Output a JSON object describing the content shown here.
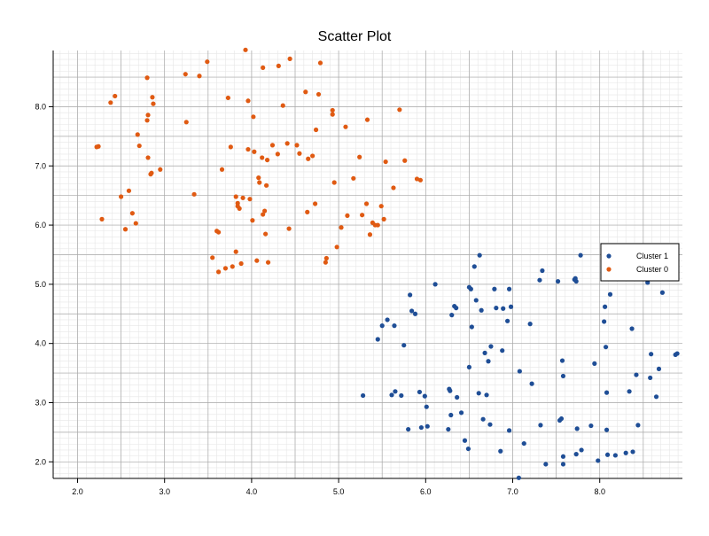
{
  "chart_data": {
    "type": "scatter",
    "title": "Scatter Plot",
    "xlabel": "",
    "ylabel": "",
    "xlim": [
      1.72,
      8.95
    ],
    "ylim": [
      1.72,
      8.95
    ],
    "x_ticks": [
      2.0,
      3.0,
      4.0,
      5.0,
      6.0,
      7.0,
      8.0
    ],
    "y_ticks": [
      2.0,
      3.0,
      4.0,
      5.0,
      6.0,
      7.0,
      8.0
    ],
    "x_tick_labels": [
      "2.0",
      "3.0",
      "4.0",
      "5.0",
      "6.0",
      "7.0",
      "8.0"
    ],
    "y_tick_labels": [
      "2.0",
      "3.0",
      "4.0",
      "5.0",
      "6.0",
      "7.0",
      "8.0"
    ],
    "grid": true,
    "minor_grid": true,
    "legend": "right",
    "series": [
      {
        "name": "Cluster 1",
        "color": "#1f4e96",
        "points": [
          [
            5.28,
            3.12
          ],
          [
            5.45,
            4.07
          ],
          [
            5.5,
            4.3
          ],
          [
            5.56,
            4.4
          ],
          [
            5.61,
            3.13
          ],
          [
            5.64,
            4.3
          ],
          [
            5.65,
            3.19
          ],
          [
            5.72,
            3.12
          ],
          [
            5.75,
            3.97
          ],
          [
            5.8,
            2.55
          ],
          [
            5.82,
            4.82
          ],
          [
            5.84,
            4.55
          ],
          [
            5.88,
            4.5
          ],
          [
            5.93,
            3.18
          ],
          [
            5.95,
            2.58
          ],
          [
            5.99,
            3.11
          ],
          [
            6.01,
            2.93
          ],
          [
            6.02,
            2.6
          ],
          [
            6.11,
            5.0
          ],
          [
            6.26,
            2.55
          ],
          [
            6.27,
            3.23
          ],
          [
            6.28,
            3.2
          ],
          [
            6.29,
            2.79
          ],
          [
            6.3,
            4.48
          ],
          [
            6.33,
            4.63
          ],
          [
            6.35,
            4.6
          ],
          [
            6.36,
            3.09
          ],
          [
            6.41,
            2.83
          ],
          [
            6.45,
            2.36
          ],
          [
            6.49,
            2.22
          ],
          [
            6.5,
            3.6
          ],
          [
            6.5,
            4.95
          ],
          [
            6.52,
            4.92
          ],
          [
            6.53,
            4.28
          ],
          [
            6.56,
            5.3
          ],
          [
            6.58,
            4.73
          ],
          [
            6.61,
            3.16
          ],
          [
            6.62,
            5.49
          ],
          [
            6.64,
            4.56
          ],
          [
            6.66,
            2.72
          ],
          [
            6.68,
            3.84
          ],
          [
            6.7,
            3.13
          ],
          [
            6.72,
            3.7
          ],
          [
            6.74,
            2.63
          ],
          [
            6.75,
            3.95
          ],
          [
            6.79,
            4.92
          ],
          [
            6.81,
            4.6
          ],
          [
            6.86,
            2.18
          ],
          [
            6.88,
            3.88
          ],
          [
            6.89,
            4.59
          ],
          [
            6.94,
            4.38
          ],
          [
            6.96,
            4.92
          ],
          [
            6.96,
            2.53
          ],
          [
            6.98,
            4.62
          ],
          [
            7.07,
            1.73
          ],
          [
            7.08,
            3.53
          ],
          [
            7.13,
            2.31
          ],
          [
            7.2,
            4.33
          ],
          [
            7.22,
            3.32
          ],
          [
            7.31,
            5.07
          ],
          [
            7.32,
            2.62
          ],
          [
            7.34,
            5.23
          ],
          [
            7.38,
            1.96
          ],
          [
            7.52,
            5.05
          ],
          [
            7.54,
            2.7
          ],
          [
            7.56,
            2.73
          ],
          [
            7.57,
            3.71
          ],
          [
            7.58,
            3.45
          ],
          [
            7.58,
            2.09
          ],
          [
            7.58,
            1.96
          ],
          [
            7.71,
            5.08
          ],
          [
            7.72,
            5.1
          ],
          [
            7.73,
            5.05
          ],
          [
            7.73,
            2.13
          ],
          [
            7.74,
            2.56
          ],
          [
            7.78,
            5.49
          ],
          [
            7.79,
            2.2
          ],
          [
            7.9,
            2.61
          ],
          [
            7.94,
            3.66
          ],
          [
            7.98,
            2.02
          ],
          [
            8.05,
            4.37
          ],
          [
            8.06,
            4.62
          ],
          [
            8.07,
            3.94
          ],
          [
            8.08,
            2.54
          ],
          [
            8.08,
            3.17
          ],
          [
            8.09,
            2.12
          ],
          [
            8.12,
            4.83
          ],
          [
            8.18,
            2.11
          ],
          [
            8.3,
            2.15
          ],
          [
            8.34,
            3.19
          ],
          [
            8.37,
            4.25
          ],
          [
            8.38,
            2.17
          ],
          [
            8.42,
            3.47
          ],
          [
            8.44,
            2.62
          ],
          [
            8.55,
            5.03
          ],
          [
            8.58,
            3.42
          ],
          [
            8.59,
            3.82
          ],
          [
            8.65,
            3.1
          ],
          [
            8.68,
            3.57
          ],
          [
            8.72,
            4.86
          ],
          [
            8.87,
            3.81
          ],
          [
            8.89,
            3.83
          ]
        ]
      },
      {
        "name": "Cluster 0",
        "color": "#e05a12",
        "points": [
          [
            2.22,
            7.32
          ],
          [
            2.24,
            7.33
          ],
          [
            2.28,
            6.1
          ],
          [
            2.38,
            8.07
          ],
          [
            2.43,
            8.18
          ],
          [
            2.5,
            6.48
          ],
          [
            2.55,
            5.93
          ],
          [
            2.59,
            6.58
          ],
          [
            2.63,
            6.2
          ],
          [
            2.67,
            6.03
          ],
          [
            2.69,
            7.53
          ],
          [
            2.71,
            7.34
          ],
          [
            2.8,
            8.49
          ],
          [
            2.8,
            7.77
          ],
          [
            2.81,
            7.86
          ],
          [
            2.81,
            7.14
          ],
          [
            2.84,
            6.86
          ],
          [
            2.85,
            6.88
          ],
          [
            2.86,
            8.16
          ],
          [
            2.87,
            8.05
          ],
          [
            2.95,
            6.94
          ],
          [
            3.24,
            8.55
          ],
          [
            3.25,
            7.74
          ],
          [
            3.34,
            6.52
          ],
          [
            3.4,
            8.52
          ],
          [
            3.49,
            8.76
          ],
          [
            3.55,
            5.45
          ],
          [
            3.6,
            5.9
          ],
          [
            3.62,
            5.88
          ],
          [
            3.62,
            5.21
          ],
          [
            3.66,
            6.94
          ],
          [
            3.7,
            5.27
          ],
          [
            3.73,
            8.15
          ],
          [
            3.76,
            7.32
          ],
          [
            3.78,
            5.3
          ],
          [
            3.82,
            5.55
          ],
          [
            3.82,
            6.48
          ],
          [
            3.84,
            6.32
          ],
          [
            3.84,
            6.37
          ],
          [
            3.86,
            6.28
          ],
          [
            3.88,
            5.35
          ],
          [
            3.9,
            6.46
          ],
          [
            3.93,
            8.96
          ],
          [
            3.96,
            8.1
          ],
          [
            3.96,
            7.28
          ],
          [
            3.98,
            6.44
          ],
          [
            4.01,
            6.08
          ],
          [
            4.02,
            7.83
          ],
          [
            4.03,
            7.24
          ],
          [
            4.06,
            5.4
          ],
          [
            4.08,
            6.8
          ],
          [
            4.09,
            6.72
          ],
          [
            4.12,
            7.14
          ],
          [
            4.13,
            6.18
          ],
          [
            4.13,
            8.66
          ],
          [
            4.15,
            6.24
          ],
          [
            4.16,
            5.85
          ],
          [
            4.17,
            6.67
          ],
          [
            4.18,
            7.1
          ],
          [
            4.19,
            5.37
          ],
          [
            4.24,
            7.35
          ],
          [
            4.3,
            7.2
          ],
          [
            4.31,
            8.69
          ],
          [
            4.36,
            8.02
          ],
          [
            4.41,
            7.38
          ],
          [
            4.43,
            5.94
          ],
          [
            4.44,
            8.81
          ],
          [
            4.52,
            7.35
          ],
          [
            4.55,
            7.21
          ],
          [
            4.62,
            8.25
          ],
          [
            4.64,
            6.22
          ],
          [
            4.65,
            7.12
          ],
          [
            4.7,
            7.17
          ],
          [
            4.73,
            6.36
          ],
          [
            4.74,
            7.61
          ],
          [
            4.77,
            8.21
          ],
          [
            4.79,
            8.74
          ],
          [
            4.85,
            5.37
          ],
          [
            4.86,
            5.44
          ],
          [
            4.93,
            7.94
          ],
          [
            4.93,
            7.87
          ],
          [
            4.95,
            6.72
          ],
          [
            4.98,
            5.63
          ],
          [
            5.03,
            5.96
          ],
          [
            5.08,
            7.66
          ],
          [
            5.1,
            6.16
          ],
          [
            5.17,
            6.79
          ],
          [
            5.24,
            7.15
          ],
          [
            5.27,
            6.17
          ],
          [
            5.32,
            6.36
          ],
          [
            5.33,
            7.78
          ],
          [
            5.36,
            5.84
          ],
          [
            5.39,
            6.04
          ],
          [
            5.42,
            6.0
          ],
          [
            5.45,
            6.0
          ],
          [
            5.49,
            6.32
          ],
          [
            5.52,
            6.1
          ],
          [
            5.54,
            7.07
          ],
          [
            5.63,
            6.63
          ],
          [
            5.7,
            7.95
          ],
          [
            5.76,
            7.09
          ],
          [
            5.9,
            6.78
          ],
          [
            5.94,
            6.76
          ]
        ]
      }
    ]
  }
}
